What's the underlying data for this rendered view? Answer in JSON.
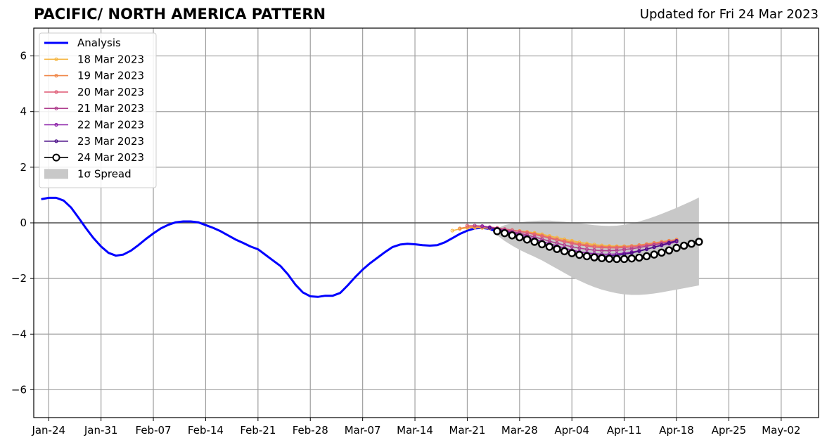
{
  "chart_data": {
    "type": "line",
    "title": "PACIFIC/ NORTH AMERICA PATTERN",
    "subtitle": "Updated for Fri 24 Mar 2023",
    "xlabel": "",
    "ylabel": "",
    "x_range": [
      "2023-01-22",
      "2023-05-07"
    ],
    "ylim": [
      -7,
      7
    ],
    "y_ticks": [
      -6,
      -4,
      -2,
      0,
      2,
      4,
      6
    ],
    "y_tick_labels": [
      "−6",
      "−4",
      "−2",
      "0",
      "2",
      "4",
      "6"
    ],
    "x_ticks": [
      "2023-01-24",
      "2023-01-31",
      "2023-02-07",
      "2023-02-14",
      "2023-02-21",
      "2023-02-28",
      "2023-03-07",
      "2023-03-14",
      "2023-03-21",
      "2023-03-28",
      "2023-04-04",
      "2023-04-11",
      "2023-04-18",
      "2023-04-25",
      "2023-05-02"
    ],
    "x_tick_labels": [
      "Jan-24",
      "Jan-31",
      "Feb-07",
      "Feb-14",
      "Feb-21",
      "Feb-28",
      "Mar-07",
      "Mar-14",
      "Mar-21",
      "Mar-28",
      "Apr-04",
      "Apr-11",
      "Apr-18",
      "Apr-25",
      "May-02"
    ],
    "grid": true,
    "legend_position": "top-left",
    "analysis": {
      "name": "Analysis",
      "color": "#0000ff",
      "start": "2023-01-23",
      "values": [
        0.85,
        0.9,
        0.9,
        0.8,
        0.55,
        0.18,
        -0.2,
        -0.55,
        -0.85,
        -1.08,
        -1.18,
        -1.14,
        -1.0,
        -0.8,
        -0.58,
        -0.38,
        -0.2,
        -0.07,
        0.02,
        0.05,
        0.05,
        0.02,
        -0.08,
        -0.18,
        -0.3,
        -0.45,
        -0.6,
        -0.72,
        -0.85,
        -0.95,
        -1.15,
        -1.35,
        -1.55,
        -1.85,
        -2.22,
        -2.5,
        -2.64,
        -2.66,
        -2.62,
        -2.62,
        -2.52,
        -2.25,
        -1.95,
        -1.68,
        -1.45,
        -1.25,
        -1.05,
        -0.87,
        -0.78,
        -0.75,
        -0.77,
        -0.8,
        -0.82,
        -0.8,
        -0.7,
        -0.55,
        -0.4,
        -0.28,
        -0.2,
        -0.18,
        -0.22,
        -0.32
      ]
    },
    "forecasts": [
      {
        "name": "18 Mar 2023",
        "color": "#f5b642",
        "start": "2023-03-19",
        "values": [
          -0.28,
          -0.22,
          -0.18,
          -0.17,
          -0.18,
          -0.2,
          -0.22,
          -0.24,
          -0.26,
          -0.29,
          -0.32,
          -0.36,
          -0.41,
          -0.47,
          -0.53,
          -0.59,
          -0.64,
          -0.7,
          -0.74,
          -0.78,
          -0.81,
          -0.83,
          -0.84,
          -0.84,
          -0.83,
          -0.81,
          -0.78,
          -0.74,
          -0.7,
          -0.66,
          -0.62
        ]
      },
      {
        "name": "19 Mar 2023",
        "color": "#f0884a",
        "start": "2023-03-20",
        "values": [
          -0.2,
          -0.15,
          -0.14,
          -0.15,
          -0.17,
          -0.2,
          -0.23,
          -0.26,
          -0.3,
          -0.34,
          -0.39,
          -0.45,
          -0.52,
          -0.58,
          -0.64,
          -0.7,
          -0.75,
          -0.79,
          -0.83,
          -0.85,
          -0.86,
          -0.86,
          -0.85,
          -0.83,
          -0.8,
          -0.76,
          -0.72,
          -0.68,
          -0.64,
          -0.6
        ]
      },
      {
        "name": "20 Mar 2023",
        "color": "#e0607a",
        "start": "2023-03-21",
        "values": [
          -0.1,
          -0.1,
          -0.12,
          -0.15,
          -0.18,
          -0.22,
          -0.26,
          -0.31,
          -0.36,
          -0.42,
          -0.48,
          -0.55,
          -0.62,
          -0.68,
          -0.74,
          -0.79,
          -0.83,
          -0.87,
          -0.89,
          -0.9,
          -0.9,
          -0.89,
          -0.87,
          -0.84,
          -0.8,
          -0.76,
          -0.72,
          -0.68,
          -0.64
        ]
      },
      {
        "name": "21 Mar 2023",
        "color": "#b0408f",
        "start": "2023-03-22",
        "values": [
          -0.1,
          -0.12,
          -0.16,
          -0.2,
          -0.25,
          -0.31,
          -0.37,
          -0.44,
          -0.51,
          -0.58,
          -0.66,
          -0.73,
          -0.8,
          -0.86,
          -0.91,
          -0.95,
          -0.98,
          -1.0,
          -1.0,
          -0.99,
          -0.96,
          -0.93,
          -0.89,
          -0.84,
          -0.79,
          -0.74,
          -0.69,
          -0.64
        ]
      },
      {
        "name": "22 Mar 2023",
        "color": "#8b1fa8",
        "start": "2023-03-23",
        "values": [
          -0.12,
          -0.17,
          -0.22,
          -0.28,
          -0.35,
          -0.42,
          -0.5,
          -0.58,
          -0.67,
          -0.75,
          -0.83,
          -0.91,
          -0.98,
          -1.04,
          -1.08,
          -1.11,
          -1.13,
          -1.13,
          -1.12,
          -1.09,
          -1.05,
          -1.0,
          -0.94,
          -0.88,
          -0.81,
          -0.75,
          -0.68
        ]
      },
      {
        "name": "23 Mar 2023",
        "color": "#4b0f87",
        "start": "2023-03-24",
        "values": [
          -0.18,
          -0.24,
          -0.31,
          -0.39,
          -0.47,
          -0.56,
          -0.65,
          -0.74,
          -0.83,
          -0.92,
          -1.0,
          -1.07,
          -1.13,
          -1.17,
          -1.19,
          -1.2,
          -1.19,
          -1.17,
          -1.13,
          -1.08,
          -1.02,
          -0.95,
          -0.87,
          -0.8,
          -0.72,
          -0.65
        ]
      }
    ],
    "current_forecast": {
      "name": "24 Mar 2023",
      "color": "#000000",
      "start": "2023-03-25",
      "values": [
        -0.3,
        -0.37,
        -0.45,
        -0.52,
        -0.6,
        -0.68,
        -0.77,
        -0.86,
        -0.94,
        -1.02,
        -1.09,
        -1.15,
        -1.2,
        -1.24,
        -1.27,
        -1.29,
        -1.3,
        -1.3,
        -1.28,
        -1.25,
        -1.2,
        -1.14,
        -1.07,
        -0.99,
        -0.9,
        -0.82,
        -0.75,
        -0.68
      ],
      "spread_name": "1σ Spread",
      "spread_upper": [
        -0.2,
        -0.08,
        -0.02,
        0.02,
        0.05,
        0.07,
        0.08,
        0.08,
        0.06,
        0.04,
        0.01,
        -0.02,
        -0.05,
        -0.08,
        -0.1,
        -0.11,
        -0.1,
        -0.07,
        -0.02,
        0.05,
        0.13,
        0.22,
        0.32,
        0.43,
        0.54,
        0.66,
        0.78,
        0.91
      ],
      "spread_lower": [
        -0.45,
        -0.65,
        -0.82,
        -0.97,
        -1.1,
        -1.22,
        -1.35,
        -1.5,
        -1.65,
        -1.8,
        -1.95,
        -2.08,
        -2.2,
        -2.31,
        -2.4,
        -2.47,
        -2.53,
        -2.57,
        -2.59,
        -2.59,
        -2.57,
        -2.54,
        -2.5,
        -2.45,
        -2.4,
        -2.35,
        -2.3,
        -2.25
      ]
    },
    "legend": [
      {
        "label": "Analysis",
        "kind": "analysis",
        "color": "#0000ff"
      },
      {
        "label": "18 Mar 2023",
        "kind": "forecast",
        "color": "#f5b642"
      },
      {
        "label": "19 Mar 2023",
        "kind": "forecast",
        "color": "#f0884a"
      },
      {
        "label": "20 Mar 2023",
        "kind": "forecast",
        "color": "#e0607a"
      },
      {
        "label": "21 Mar 2023",
        "kind": "forecast",
        "color": "#b0408f"
      },
      {
        "label": "22 Mar 2023",
        "kind": "forecast",
        "color": "#8b1fa8"
      },
      {
        "label": "23 Mar 2023",
        "kind": "forecast",
        "color": "#4b0f87"
      },
      {
        "label": "24 Mar 2023",
        "kind": "current",
        "color": "#000000"
      },
      {
        "label": "1σ Spread",
        "kind": "spread",
        "color": "#c8c8c8"
      }
    ]
  }
}
